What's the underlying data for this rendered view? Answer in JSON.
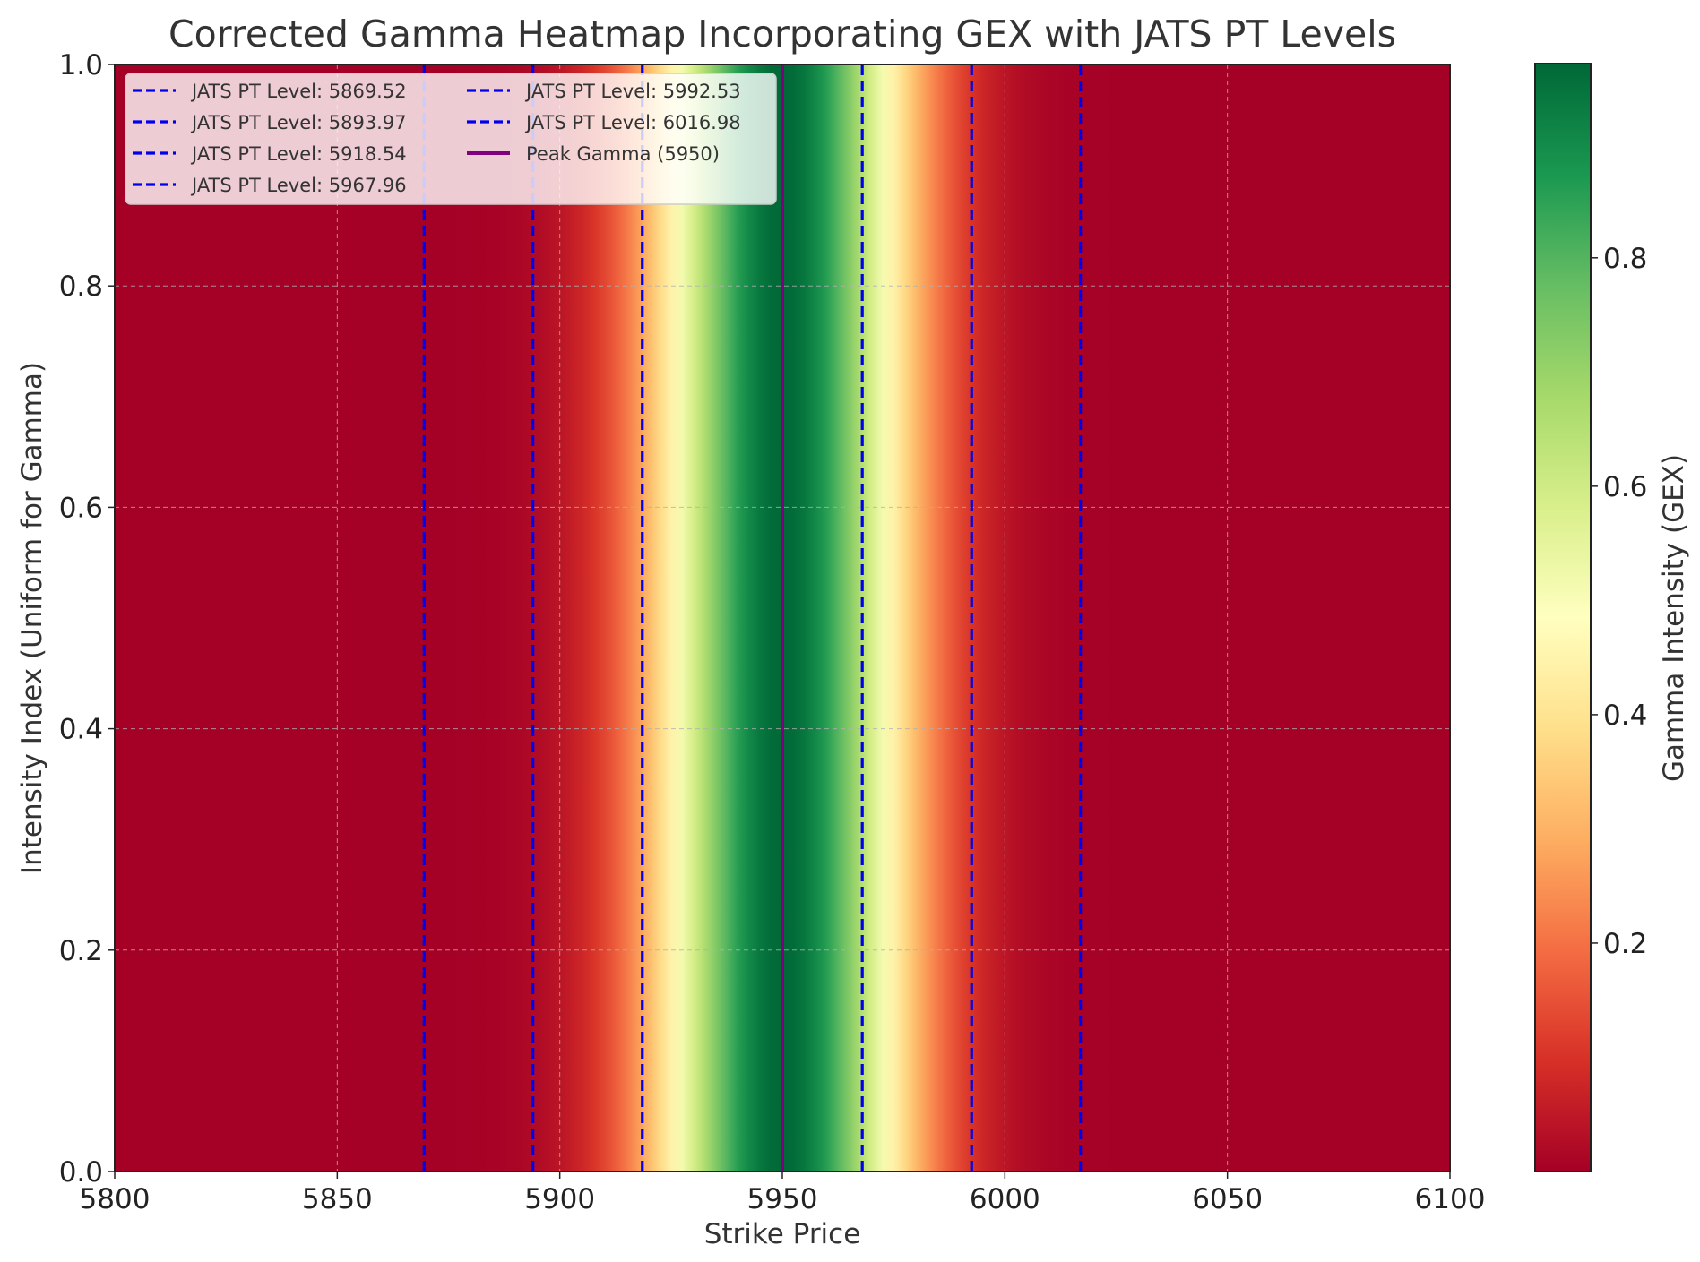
{
  "chart_data": {
    "type": "heatmap",
    "title": "Corrected Gamma Heatmap Incorporating GEX with JATS PT Levels",
    "xlabel": "Strike Price",
    "ylabel": "Intensity Index (Uniform for Gamma)",
    "xlim": [
      5800,
      6100
    ],
    "ylim": [
      0,
      1
    ],
    "x_ticks": [
      5800,
      5850,
      5900,
      5950,
      6000,
      6050,
      6100
    ],
    "y_ticks": [
      "0.0",
      "0.2",
      "0.4",
      "0.6",
      "0.8",
      "1.0"
    ],
    "grid": true,
    "colormap": "RdYlGn",
    "gamma_profile": {
      "peak_strike": 5950,
      "sigma": 20,
      "peak_value": 0.97,
      "description_shape": "gaussian"
    },
    "colorbar": {
      "label": "Gamma Intensity (GEX)",
      "range": [
        0.0,
        0.97
      ],
      "ticks": [
        "0.2",
        "0.4",
        "0.6",
        "0.8"
      ]
    },
    "vlines": [
      {
        "label": "JATS PT Level: 5869.52",
        "x": 5869.52,
        "color": "#0000ee",
        "style": "dashed"
      },
      {
        "label": "JATS PT Level: 5893.97",
        "x": 5893.97,
        "color": "#0000ee",
        "style": "dashed"
      },
      {
        "label": "JATS PT Level: 5918.54",
        "x": 5918.54,
        "color": "#0000ee",
        "style": "dashed"
      },
      {
        "label": "JATS PT Level: 5967.96",
        "x": 5967.96,
        "color": "#0000ee",
        "style": "dashed"
      },
      {
        "label": "JATS PT Level: 5992.53",
        "x": 5992.53,
        "color": "#0000ee",
        "style": "dashed"
      },
      {
        "label": "JATS PT Level: 6016.98",
        "x": 6016.98,
        "color": "#0000ee",
        "style": "dashed"
      },
      {
        "label": "Peak Gamma (5950)",
        "x": 5950,
        "color": "#800080",
        "style": "solid"
      }
    ],
    "legend_position": "upper-left",
    "legend_columns": 2
  }
}
